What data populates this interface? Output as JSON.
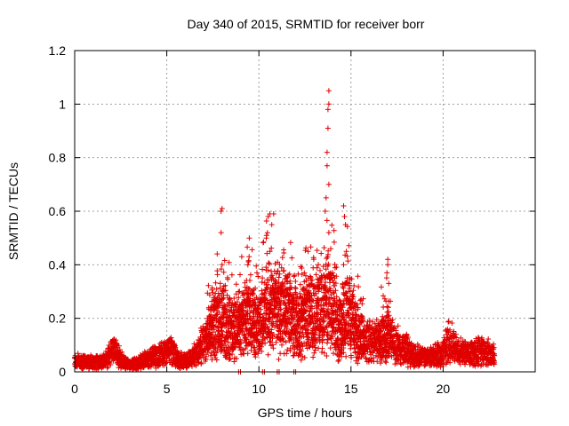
{
  "chart_data": {
    "type": "scatter",
    "title": "Day 340 of 2015, SRMTID for receiver borr",
    "xlabel": "GPS time / hours",
    "ylabel": "SRMTID / TECUs",
    "xlim": [
      0,
      25
    ],
    "ylim": [
      0,
      1.2
    ],
    "xticks": [
      0,
      5,
      10,
      15,
      20
    ],
    "xtick_labels": [
      "0",
      "5",
      "10",
      "15",
      "20"
    ],
    "yticks": [
      0,
      0.2,
      0.4,
      0.6,
      0.8,
      1,
      1.2
    ],
    "ytick_labels": [
      "0",
      "0.2",
      "0.4",
      "0.6",
      "0.8",
      "1",
      "1.2"
    ],
    "grid": true,
    "marker": "+",
    "series": [
      {
        "name": "SRMTID",
        "color": "#e00000",
        "profile": [
          [
            0.0,
            0.04
          ],
          [
            0.5,
            0.04
          ],
          [
            1.0,
            0.035
          ],
          [
            1.5,
            0.04
          ],
          [
            1.8,
            0.05
          ],
          [
            2.0,
            0.08
          ],
          [
            2.3,
            0.07
          ],
          [
            2.6,
            0.04
          ],
          [
            3.0,
            0.025
          ],
          [
            3.5,
            0.035
          ],
          [
            4.0,
            0.05
          ],
          [
            4.5,
            0.06
          ],
          [
            5.0,
            0.07
          ],
          [
            5.3,
            0.08
          ],
          [
            5.5,
            0.05
          ],
          [
            6.0,
            0.04
          ],
          [
            6.5,
            0.06
          ],
          [
            7.0,
            0.11
          ],
          [
            7.5,
            0.16
          ],
          [
            8.0,
            0.2
          ],
          [
            8.5,
            0.16
          ],
          [
            9.0,
            0.18
          ],
          [
            9.5,
            0.2
          ],
          [
            10.0,
            0.17
          ],
          [
            10.5,
            0.25
          ],
          [
            11.0,
            0.22
          ],
          [
            11.5,
            0.22
          ],
          [
            12.0,
            0.18
          ],
          [
            12.5,
            0.2
          ],
          [
            13.0,
            0.22
          ],
          [
            13.5,
            0.24
          ],
          [
            14.0,
            0.26
          ],
          [
            14.3,
            0.15
          ],
          [
            14.7,
            0.22
          ],
          [
            15.0,
            0.2
          ],
          [
            15.5,
            0.13
          ],
          [
            16.0,
            0.11
          ],
          [
            16.5,
            0.12
          ],
          [
            17.0,
            0.13
          ],
          [
            17.5,
            0.1
          ],
          [
            18.0,
            0.08
          ],
          [
            18.5,
            0.06
          ],
          [
            19.0,
            0.055
          ],
          [
            19.5,
            0.06
          ],
          [
            20.0,
            0.07
          ],
          [
            20.3,
            0.12
          ],
          [
            20.6,
            0.09
          ],
          [
            21.0,
            0.07
          ],
          [
            21.5,
            0.07
          ],
          [
            22.0,
            0.08
          ],
          [
            22.5,
            0.07
          ],
          [
            22.8,
            0.06
          ]
        ],
        "spikes": [
          {
            "x": 7.95,
            "y": 0.52
          },
          {
            "x": 7.95,
            "y": 0.6
          },
          {
            "x": 8.0,
            "y": 0.61
          },
          {
            "x": 8.0,
            "y": 0.4
          },
          {
            "x": 7.9,
            "y": 0.33
          },
          {
            "x": 10.5,
            "y": 0.58
          },
          {
            "x": 10.6,
            "y": 0.59
          },
          {
            "x": 10.8,
            "y": 0.59
          },
          {
            "x": 10.7,
            "y": 0.55
          },
          {
            "x": 10.4,
            "y": 0.5
          },
          {
            "x": 10.6,
            "y": 0.45
          },
          {
            "x": 13.8,
            "y": 1.05
          },
          {
            "x": 13.8,
            "y": 1.0
          },
          {
            "x": 13.75,
            "y": 0.98
          },
          {
            "x": 13.75,
            "y": 0.91
          },
          {
            "x": 13.7,
            "y": 0.82
          },
          {
            "x": 13.7,
            "y": 0.77
          },
          {
            "x": 13.8,
            "y": 0.7
          },
          {
            "x": 13.65,
            "y": 0.65
          },
          {
            "x": 13.6,
            "y": 0.6
          },
          {
            "x": 13.8,
            "y": 0.52
          },
          {
            "x": 13.9,
            "y": 0.46
          },
          {
            "x": 14.6,
            "y": 0.62
          },
          {
            "x": 14.65,
            "y": 0.58
          },
          {
            "x": 14.7,
            "y": 0.55
          },
          {
            "x": 14.75,
            "y": 0.45
          },
          {
            "x": 14.6,
            "y": 0.4
          },
          {
            "x": 17.0,
            "y": 0.42
          },
          {
            "x": 17.0,
            "y": 0.4
          },
          {
            "x": 16.95,
            "y": 0.37
          },
          {
            "x": 17.05,
            "y": 0.33
          }
        ],
        "zero_points": [
          {
            "x": 8.9,
            "y": 0.0
          },
          {
            "x": 9.0,
            "y": 0.0
          },
          {
            "x": 10.2,
            "y": 0.0
          },
          {
            "x": 10.3,
            "y": 0.0
          },
          {
            "x": 11.0,
            "y": 0.0
          },
          {
            "x": 11.1,
            "y": 0.0
          },
          {
            "x": 11.9,
            "y": 0.0
          },
          {
            "x": 12.0,
            "y": 0.0
          }
        ]
      }
    ]
  }
}
